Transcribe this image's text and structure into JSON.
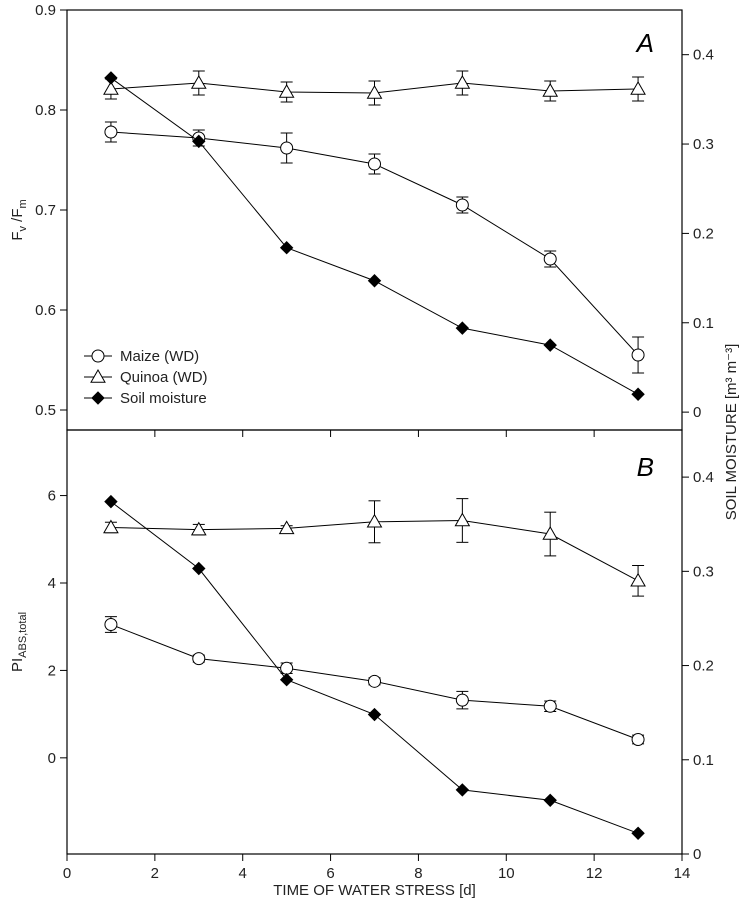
{
  "chart_data": [
    {
      "type": "line",
      "panel_label": "A",
      "ylabel_left": {
        "main": "F",
        "sub1": "v",
        "sep": " /F",
        "sub2": "m"
      },
      "ylabel_right": "SOIL MOISTURE [m³ m⁻³]",
      "xlabel": "TIME OF WATER STRESS [d]",
      "xlim": [
        0,
        14
      ],
      "ylim_left": [
        0.48,
        0.9
      ],
      "ylim_right": [
        -0.02,
        0.45
      ],
      "yticks_left": [
        "0.5",
        "0.6",
        "0.7",
        "0.8",
        "0.9"
      ],
      "yticks_right": [
        "0",
        "0.1",
        "0.2",
        "0.3",
        "0.4"
      ],
      "legend": {
        "placement": "lower-left",
        "entries": [
          {
            "label": "Maize (WD)",
            "marker": "open-circle"
          },
          {
            "label": "Quinoa (WD)",
            "marker": "open-triangle"
          },
          {
            "label": "Soil moisture",
            "marker": "filled-diamond"
          }
        ]
      },
      "x": [
        1,
        3,
        5,
        7,
        9,
        11,
        13
      ],
      "series": [
        {
          "marker": "open-circle",
          "axis": "left",
          "values": [
            0.778,
            0.772,
            0.762,
            0.746,
            0.705,
            0.651,
            0.555
          ],
          "errors": [
            0.01,
            0.008,
            0.015,
            0.01,
            0.008,
            0.008,
            0.018
          ]
        },
        {
          "marker": "open-triangle",
          "axis": "left",
          "values": [
            0.821,
            0.827,
            0.818,
            0.817,
            0.827,
            0.819,
            0.821
          ],
          "errors": [
            0.01,
            0.012,
            0.01,
            0.012,
            0.012,
            0.01,
            0.012
          ]
        },
        {
          "marker": "filled-diamond",
          "axis": "right",
          "values": [
            0.374,
            0.303,
            0.184,
            0.147,
            0.094,
            0.075,
            0.02
          ],
          "errors": []
        }
      ]
    },
    {
      "type": "line",
      "panel_label": "B",
      "ylabel_left": {
        "main": "PI",
        "sub1": "ABS,total"
      },
      "ylabel_right": "SOIL MOISTURE [m³ m⁻³]",
      "xlabel": "TIME OF WATER STRESS [d]",
      "xlim": [
        0,
        14
      ],
      "ylim_left": [
        -2.2,
        7.5
      ],
      "ylim_right": [
        0,
        0.45
      ],
      "xticks": [
        "0",
        "2",
        "4",
        "6",
        "8",
        "10",
        "12",
        "14"
      ],
      "yticks_left": [
        "0",
        "2",
        "4",
        "6"
      ],
      "yticks_right": [
        "0",
        "0.1",
        "0.2",
        "0.3",
        "0.4"
      ],
      "x": [
        1,
        3,
        5,
        7,
        9,
        11,
        13
      ],
      "series": [
        {
          "marker": "open-circle",
          "axis": "left",
          "values": [
            3.05,
            2.27,
            2.05,
            1.75,
            1.32,
            1.18,
            0.42
          ],
          "errors": [
            0.18,
            0.08,
            0.12,
            0.08,
            0.2,
            0.12,
            0.1
          ]
        },
        {
          "marker": "open-triangle",
          "axis": "left",
          "values": [
            5.27,
            5.22,
            5.25,
            5.4,
            5.43,
            5.12,
            4.05
          ],
          "errors": [
            0.12,
            0.12,
            0.06,
            0.48,
            0.5,
            0.5,
            0.35
          ]
        },
        {
          "marker": "filled-diamond",
          "axis": "right",
          "values": [
            0.374,
            0.303,
            0.185,
            0.148,
            0.068,
            0.057,
            0.022
          ],
          "errors": []
        }
      ]
    }
  ]
}
